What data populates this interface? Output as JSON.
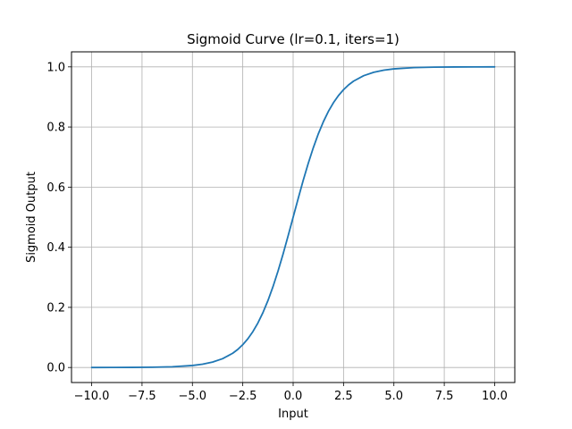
{
  "chart_data": {
    "type": "line",
    "title": "Sigmoid Curve (lr=0.1, iters=1)",
    "xlabel": "Input",
    "ylabel": "Sigmoid Output",
    "xlim": [
      -11,
      11
    ],
    "ylim": [
      -0.05,
      1.05
    ],
    "grid": true,
    "x_ticks": [
      -10,
      -7.5,
      -5,
      -2.5,
      0,
      2.5,
      5,
      7.5,
      10
    ],
    "x_tick_labels": [
      "−10.0",
      "−7.5",
      "−5.0",
      "−2.5",
      "0.0",
      "2.5",
      "5.0",
      "7.5",
      "10.0"
    ],
    "y_ticks": [
      0,
      0.2,
      0.4,
      0.6,
      0.8,
      1.0
    ],
    "y_tick_labels": [
      "0.0",
      "0.2",
      "0.4",
      "0.6",
      "0.8",
      "1.0"
    ],
    "series": [
      {
        "color": "#1f77b4",
        "x": [
          -10,
          -9,
          -8,
          -7,
          -6,
          -5,
          -4.5,
          -4,
          -3.5,
          -3,
          -2.75,
          -2.5,
          -2.25,
          -2,
          -1.75,
          -1.5,
          -1.25,
          -1,
          -0.75,
          -0.5,
          -0.25,
          0,
          0.25,
          0.5,
          0.75,
          1,
          1.25,
          1.5,
          1.75,
          2,
          2.25,
          2.5,
          2.75,
          3,
          3.5,
          4,
          4.5,
          5,
          6,
          7,
          8,
          9,
          10
        ],
        "y": [
          0.0,
          0.0001,
          0.0003,
          0.0009,
          0.0025,
          0.0067,
          0.011,
          0.018,
          0.0293,
          0.0474,
          0.0601,
          0.0759,
          0.0953,
          0.1192,
          0.148,
          0.1824,
          0.2227,
          0.2689,
          0.3208,
          0.3775,
          0.4378,
          0.5,
          0.5622,
          0.6225,
          0.6792,
          0.7311,
          0.7773,
          0.8176,
          0.852,
          0.8808,
          0.9047,
          0.9241,
          0.9399,
          0.9526,
          0.9707,
          0.982,
          0.989,
          0.9933,
          0.9975,
          0.9991,
          0.9997,
          0.9999,
          1.0
        ]
      }
    ]
  }
}
